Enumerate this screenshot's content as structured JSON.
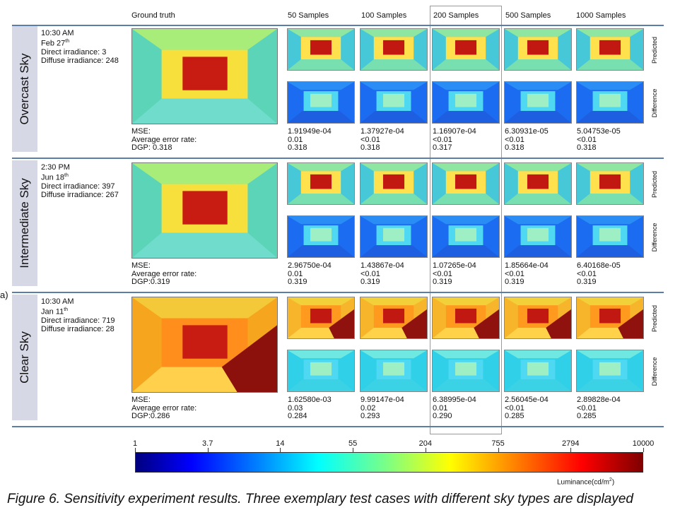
{
  "column_headers": {
    "ground_truth": "Ground truth",
    "s50": "50 Samples",
    "s100": "100 Samples",
    "s200": "200 Samples",
    "s500": "500 Samples",
    "s1000": "1000 Samples"
  },
  "side_labels": {
    "predicted": "Predicted",
    "difference": "Difference"
  },
  "panel_label": "a)",
  "rows": [
    {
      "sky": "Overcast Sky",
      "time": "10:30 AM",
      "date": "Feb 27",
      "date_sup": "th",
      "direct": "Direct irradiance: 3",
      "diffuse": "Diffuse irradiance: 248",
      "gt_labels": [
        "MSE:",
        "Average error rate:",
        "DGP: 0.318"
      ],
      "cols": [
        [
          "1.91949e-04",
          "0.01",
          "0.318"
        ],
        [
          "1.37927e-04",
          "<0.01",
          "0.318"
        ],
        [
          "1.16907e-04",
          "<0.01",
          "0.317"
        ],
        [
          "6.30931e-05",
          "<0.01",
          "0.318"
        ],
        [
          "5.04753e-05",
          "<0.01",
          "0.318"
        ]
      ]
    },
    {
      "sky": "Intermediate Sky",
      "time": "2:30 PM",
      "date": "Jun 18",
      "date_sup": "th",
      "direct": "Direct irradiance: 397",
      "diffuse": "Diffuse irradiance: 267",
      "gt_labels": [
        "MSE:",
        "Average error rate:",
        "DGP:0.319"
      ],
      "cols": [
        [
          "2.96750e-04",
          "0.01",
          "0.319"
        ],
        [
          "1.43867e-04",
          "<0.01",
          "0.319"
        ],
        [
          "1.07265e-04",
          "<0.01",
          "0.319"
        ],
        [
          "1.85664e-04",
          "<0.01",
          "0.319"
        ],
        [
          "6.40168e-05",
          "<0.01",
          "0.319"
        ]
      ]
    },
    {
      "sky": "Clear Sky",
      "time": "10:30 AM",
      "date": "Jan 11",
      "date_sup": "th",
      "direct": "Direct irradiance: 719",
      "diffuse": "Diffuse irradiance: 28",
      "gt_labels": [
        "MSE:",
        "Average error rate:",
        "DGP:0.286"
      ],
      "cols": [
        [
          "1.62580e-03",
          "0.03",
          "0.284"
        ],
        [
          "9.99147e-04",
          "0.02",
          "0.293"
        ],
        [
          "6.38995e-04",
          "0.01",
          "0.290"
        ],
        [
          "2.56045e-04",
          "<0.01",
          "0.285"
        ],
        [
          "2.89828e-04",
          "<0.01",
          "0.285"
        ]
      ]
    }
  ],
  "colorbar": {
    "ticks": [
      "1",
      "3.7",
      "14",
      "55",
      "204",
      "755",
      "2794",
      "10000"
    ],
    "unit_label": "Luminance(cd/m",
    "unit_sup": "2",
    "unit_close": ")"
  },
  "caption": "Figure 6. Sensitivity experiment results. Three exemplary test cases with different sky types are displayed",
  "colors": {
    "divider": "#5b7ea6",
    "sky_label_bg": "#d7d8e6",
    "highlight_box": "#9a9a9a"
  }
}
